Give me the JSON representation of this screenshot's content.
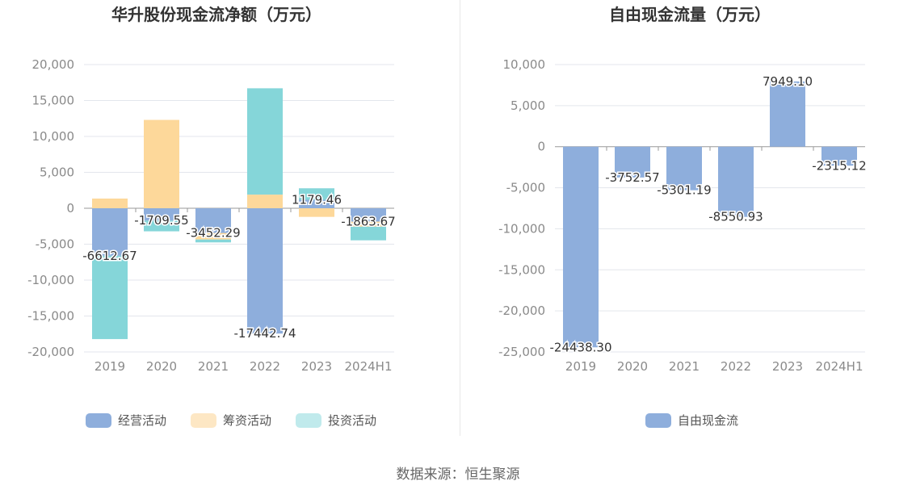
{
  "source_label": "数据来源：恒生聚源",
  "colors": {
    "operating": "#8eaedc",
    "financing": "#fdd89a",
    "investing": "#85d6d9",
    "financing_legend": "#fde7c4",
    "investing_legend": "#c0eaec",
    "free_cash_flow": "#8eaedc",
    "grid": "#e3e6ec",
    "axis": "#999999"
  },
  "chart_data": [
    {
      "type": "bar",
      "stacked": true,
      "title": "华升股份现金流净额（万元）",
      "categories": [
        "2019",
        "2020",
        "2021",
        "2022",
        "2023",
        "2024H1"
      ],
      "ylim": [
        -20000,
        20000
      ],
      "yticks": [
        20000,
        15000,
        10000,
        5000,
        0,
        -5000,
        -10000,
        -15000,
        -20000
      ],
      "ytick_labels": [
        "20,000",
        "15,000",
        "10,000",
        "5,000",
        "0",
        "-5,000",
        "-10,000",
        "-15,000",
        "-20,000"
      ],
      "series": [
        {
          "name": "经营活动",
          "color_key": "operating",
          "legend_color_key": "operating",
          "values": [
            -6612.67,
            -1709.55,
            -3452.29,
            -17442.74,
            1179.46,
            -1863.67
          ]
        },
        {
          "name": "筹资活动",
          "color_key": "financing",
          "legend_color_key": "financing_legend",
          "values": [
            1350,
            12300,
            -900,
            1900,
            -1200,
            -700
          ]
        },
        {
          "name": "投资活动",
          "color_key": "investing",
          "legend_color_key": "investing_legend",
          "values": [
            -11600,
            -1500,
            -400,
            14800,
            1600,
            -1900
          ]
        }
      ],
      "data_labels": [
        "-6612.67",
        "-1709.55",
        "-3452.29",
        "-17442.74",
        "1179.46",
        "-1863.67"
      ]
    },
    {
      "type": "bar",
      "title": "自由现金流量（万元）",
      "categories": [
        "2019",
        "2020",
        "2021",
        "2022",
        "2023",
        "2024H1"
      ],
      "ylim": [
        -25000,
        10000
      ],
      "yticks": [
        10000,
        5000,
        0,
        -5000,
        -10000,
        -15000,
        -20000,
        -25000
      ],
      "ytick_labels": [
        "10,000",
        "5,000",
        "0",
        "-5,000",
        "-10,000",
        "-15,000",
        "-20,000",
        "-25,000"
      ],
      "series": [
        {
          "name": "自由现金流",
          "color_key": "free_cash_flow",
          "legend_color_key": "free_cash_flow",
          "values": [
            -24438.3,
            -3752.57,
            -5301.19,
            -8550.93,
            7949.1,
            -2315.12
          ]
        }
      ],
      "data_labels": [
        "-24438.30",
        "-3752.57",
        "-5301.19",
        "-8550.93",
        "7949.10",
        "-2315.12"
      ]
    }
  ]
}
